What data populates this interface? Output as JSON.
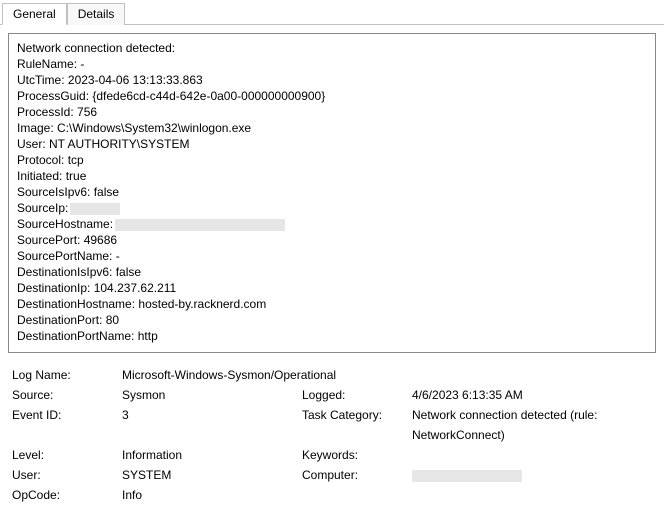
{
  "tabs": {
    "general": "General",
    "details": "Details"
  },
  "event": {
    "header": "Network connection detected:",
    "lines": [
      {
        "label": "RuleName",
        "value": "-"
      },
      {
        "label": "UtcTime",
        "value": "2023-04-06 13:13:33.863"
      },
      {
        "label": "ProcessGuid",
        "value": "{dfede6cd-c44d-642e-0a00-000000000900}"
      },
      {
        "label": "ProcessId",
        "value": "756"
      },
      {
        "label": "Image",
        "value": "C:\\Windows\\System32\\winlogon.exe"
      },
      {
        "label": "User",
        "value": "NT AUTHORITY\\SYSTEM"
      },
      {
        "label": "Protocol",
        "value": "tcp"
      },
      {
        "label": "Initiated",
        "value": "true"
      },
      {
        "label": "SourceIsIpv6",
        "value": "false"
      },
      {
        "label": "SourceIp",
        "value": "",
        "redacted": true,
        "redact_width": 50
      },
      {
        "label": "SourceHostname",
        "value": "",
        "redacted": true,
        "redact_width": 170
      },
      {
        "label": "SourcePort",
        "value": "49686"
      },
      {
        "label": "SourcePortName",
        "value": "-"
      },
      {
        "label": "DestinationIsIpv6",
        "value": "false"
      },
      {
        "label": "DestinationIp",
        "value": "104.237.62.211"
      },
      {
        "label": "DestinationHostname",
        "value": "hosted-by.racknerd.com"
      },
      {
        "label": "DestinationPort",
        "value": "80"
      },
      {
        "label": "DestinationPortName",
        "value": "http"
      }
    ]
  },
  "summary": {
    "log_name_label": "Log Name:",
    "log_name_value": "Microsoft-Windows-Sysmon/Operational",
    "source_label": "Source:",
    "source_value": "Sysmon",
    "logged_label": "Logged:",
    "logged_value": "4/6/2023 6:13:35 AM",
    "event_id_label": "Event ID:",
    "event_id_value": "3",
    "task_category_label": "Task Category:",
    "task_category_value": "Network connection detected (rule: NetworkConnect)",
    "level_label": "Level:",
    "level_value": "Information",
    "keywords_label": "Keywords:",
    "keywords_value": "",
    "user_label": "User:",
    "user_value": "SYSTEM",
    "computer_label": "Computer:",
    "computer_value": "",
    "computer_redacted": true,
    "opcode_label": "OpCode:",
    "opcode_value": "Info"
  },
  "colors": {
    "border": "#888888",
    "tab_border": "#c0c0c0",
    "redact_bg": "#e6e6e6",
    "bg": "#ffffff",
    "text": "#000000"
  }
}
